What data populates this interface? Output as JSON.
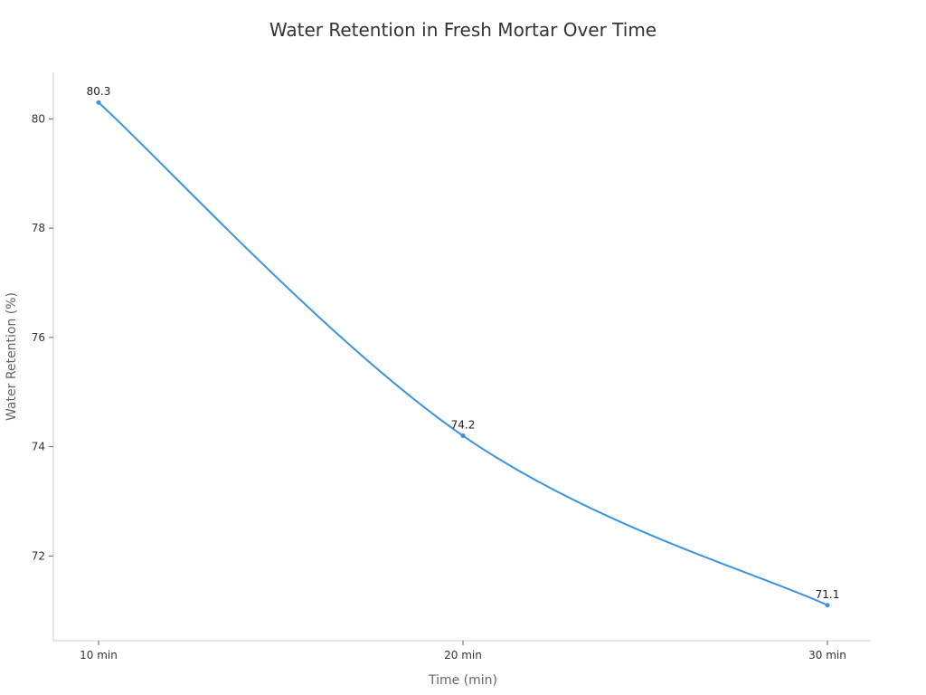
{
  "chart_data": {
    "type": "line",
    "title": "Water Retention in Fresh Mortar Over Time",
    "xlabel": "Time (min)",
    "ylabel": "Water Retention (%)",
    "categories": [
      "10 min",
      "20 min",
      "30 min"
    ],
    "series": [
      {
        "values": [
          80.3,
          74.2,
          71.1
        ]
      }
    ],
    "data_labels": [
      "80.3",
      "74.2",
      "71.1"
    ],
    "y_ticks": [
      72,
      74,
      76,
      78,
      80
    ],
    "y_tick_labels": [
      "72",
      "74",
      "76",
      "78",
      "80"
    ],
    "ylim": [
      70.45,
      80.85
    ],
    "grid": false,
    "legend": "none",
    "colors": {
      "line": "#3a94e0",
      "axis": "#cccccc",
      "tick": "#666666"
    }
  }
}
